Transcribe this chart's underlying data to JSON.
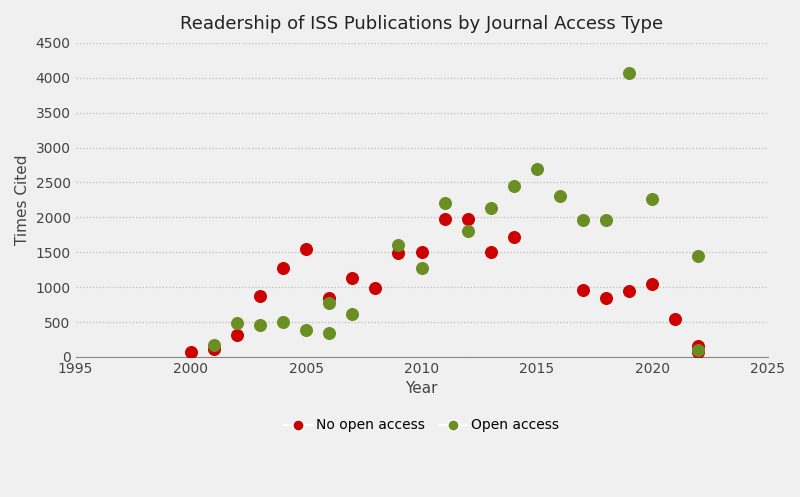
{
  "title": "Readership of ISS Publications by Journal Access Type",
  "xlabel": "Year",
  "ylabel": "Times Cited",
  "xlim": [
    1995,
    2025
  ],
  "ylim": [
    0,
    4500
  ],
  "xticks": [
    1995,
    2000,
    2005,
    2010,
    2015,
    2020,
    2025
  ],
  "yticks": [
    0,
    500,
    1000,
    1500,
    2000,
    2500,
    3000,
    3500,
    4000,
    4500
  ],
  "fig_bg_color": "#f0f0f0",
  "plot_bg_color": "#f0f0f0",
  "grid_color": "#bbbbbb",
  "no_open_access": {
    "color": "#cc0000",
    "label": "No open access",
    "points": [
      [
        2000,
        75
      ],
      [
        2001,
        110
      ],
      [
        2002,
        320
      ],
      [
        2003,
        870
      ],
      [
        2004,
        1280
      ],
      [
        2005,
        1550
      ],
      [
        2006,
        850
      ],
      [
        2007,
        1130
      ],
      [
        2008,
        990
      ],
      [
        2009,
        1490
      ],
      [
        2010,
        1500
      ],
      [
        2011,
        1970
      ],
      [
        2012,
        1980
      ],
      [
        2013,
        1510
      ],
      [
        2014,
        1720
      ],
      [
        2017,
        960
      ],
      [
        2018,
        840
      ],
      [
        2019,
        940
      ],
      [
        2020,
        1040
      ],
      [
        2021,
        540
      ],
      [
        2022,
        160
      ],
      [
        2022,
        65
      ]
    ]
  },
  "open_access": {
    "color": "#6b8e23",
    "label": "Open access",
    "points": [
      [
        2001,
        170
      ],
      [
        2002,
        490
      ],
      [
        2003,
        460
      ],
      [
        2004,
        500
      ],
      [
        2005,
        390
      ],
      [
        2006,
        775
      ],
      [
        2006,
        340
      ],
      [
        2007,
        610
      ],
      [
        2009,
        1600
      ],
      [
        2010,
        1270
      ],
      [
        2011,
        2210
      ],
      [
        2012,
        1800
      ],
      [
        2013,
        2140
      ],
      [
        2014,
        2450
      ],
      [
        2015,
        2690
      ],
      [
        2016,
        2300
      ],
      [
        2017,
        1960
      ],
      [
        2018,
        1960
      ],
      [
        2019,
        4070
      ],
      [
        2020,
        2260
      ],
      [
        2022,
        1440
      ],
      [
        2022,
        105
      ]
    ]
  }
}
